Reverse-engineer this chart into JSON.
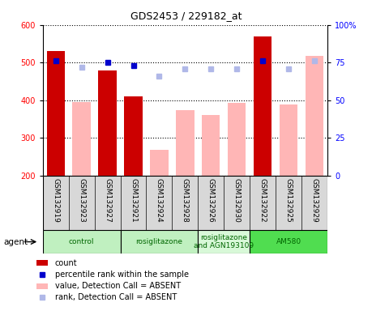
{
  "title": "GDS2453 / 229182_at",
  "samples": [
    "GSM132919",
    "GSM132923",
    "GSM132927",
    "GSM132921",
    "GSM132924",
    "GSM132928",
    "GSM132926",
    "GSM132930",
    "GSM132922",
    "GSM132925",
    "GSM132929"
  ],
  "count_values": [
    530,
    null,
    480,
    410,
    null,
    null,
    null,
    null,
    570,
    null,
    null
  ],
  "absent_values": [
    null,
    395,
    null,
    null,
    268,
    373,
    360,
    393,
    null,
    388,
    518
  ],
  "percentile_rank": [
    76,
    null,
    75,
    73,
    null,
    null,
    null,
    null,
    76,
    null,
    null
  ],
  "absent_rank": [
    null,
    72,
    null,
    null,
    66,
    71,
    71,
    71,
    null,
    71,
    76
  ],
  "group_bounds": [
    {
      "start": 0,
      "end": 2,
      "label": "control",
      "color": "#c0f0c0"
    },
    {
      "start": 3,
      "end": 5,
      "label": "rosiglitazone",
      "color": "#c0f0c0"
    },
    {
      "start": 6,
      "end": 7,
      "label": "rosiglitazone\nand AGN193109",
      "color": "#d8f8d8"
    },
    {
      "start": 8,
      "end": 10,
      "label": "AM580",
      "color": "#50dd50"
    }
  ],
  "ylim_left": [
    200,
    600
  ],
  "ylim_right": [
    0,
    100
  ],
  "yticks_left": [
    200,
    300,
    400,
    500,
    600
  ],
  "yticks_right": [
    0,
    25,
    50,
    75,
    100
  ],
  "bar_color_present": "#cc0000",
  "bar_color_absent": "#ffb6b6",
  "dot_color_present": "#0000cc",
  "dot_color_absent": "#b0b8e8",
  "xtick_bg": "#d8d8d8",
  "legend_items": [
    {
      "label": "count",
      "color": "#cc0000",
      "shape": "rect"
    },
    {
      "label": "percentile rank within the sample",
      "color": "#0000cc",
      "shape": "square"
    },
    {
      "label": "value, Detection Call = ABSENT",
      "color": "#ffb6b6",
      "shape": "rect"
    },
    {
      "label": "rank, Detection Call = ABSENT",
      "color": "#b0b8e8",
      "shape": "square"
    }
  ]
}
